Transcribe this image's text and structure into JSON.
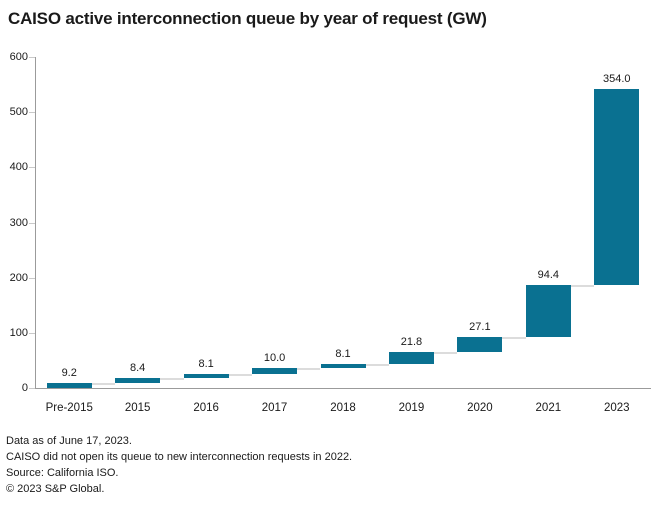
{
  "title": "CAISO active interconnection queue by year of request (GW)",
  "footnotes": [
    "Data as of June 17, 2023.",
    "CAISO did not open its queue to new interconnection requests in 2022.",
    "Source: California ISO.",
    "© 2023 S&P Global."
  ],
  "chart_data": {
    "type": "bar",
    "subtype": "waterfall",
    "title": "CAISO active interconnection queue by year of request (GW)",
    "unit": "GW",
    "categories": [
      "Pre-2015",
      "2015",
      "2016",
      "2017",
      "2018",
      "2019",
      "2020",
      "2021",
      "2023"
    ],
    "values": [
      9.2,
      8.4,
      8.1,
      10.0,
      8.1,
      21.8,
      27.1,
      94.4,
      354.0
    ],
    "value_labels": [
      "9.2",
      "8.4",
      "8.1",
      "10.0",
      "8.1",
      "21.8",
      "27.1",
      "94.4",
      "354.0"
    ],
    "cumulative_totals": [
      9.2,
      17.6,
      25.7,
      35.7,
      43.8,
      65.6,
      92.7,
      187.1,
      541.1
    ],
    "xlabel": "",
    "ylabel": "",
    "ylim": [
      0,
      600
    ],
    "yticks": [
      0,
      100,
      200,
      300,
      400,
      500,
      600
    ],
    "grid": false,
    "legend": false,
    "colors": {
      "bar": "#0a7191",
      "connector": "#dcdcdc",
      "axis": "#9b9b9b",
      "tick": "#c9c9c9",
      "text": "#1a1a1a"
    }
  }
}
